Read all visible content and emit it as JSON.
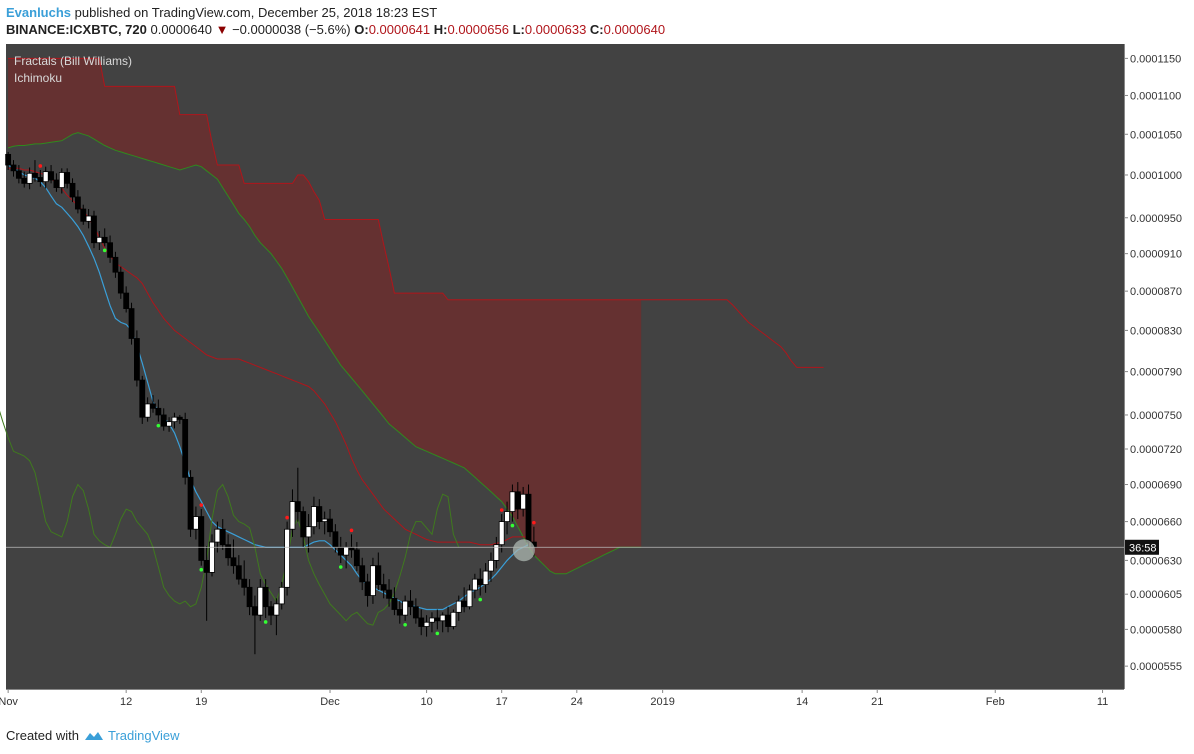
{
  "header": {
    "author": "Evanluchs",
    "published_text": " published on TradingView.com, December 25, 2018 18:23 EST",
    "symbol": "BINANCE:ICXBTC, 720",
    "last": "0.0000640",
    "change_arrow": "▼",
    "change": "−0.0000038 (−5.6%)",
    "o_label": "O:",
    "o_value": "0.0000641",
    "h_label": "H:",
    "h_value": "0.0000656",
    "l_label": "L:",
    "l_value": "0.0000633",
    "c_label": "C:",
    "c_value": "0.0000640"
  },
  "footer": {
    "created_with": "Created with",
    "brand": "TradingView"
  },
  "colors": {
    "pane": "#424242",
    "candle_up": "#ffffff",
    "candle_down": "#000000",
    "tenkan": "#3a9fd8",
    "kijun": "#b0151b",
    "span_a": "#2f8a1e",
    "span_b": "#b0151b",
    "cloud_bear": "#6b2e2e",
    "chikou": "#3f7a1e",
    "fractal_up": "#ff1a1a",
    "fractal_down": "#33ff33"
  },
  "chart_data": {
    "type": "candlestick",
    "legend": [
      "Fractals (Bill Williams)",
      "Ichimoku"
    ],
    "y_ticks": [
      0.000115,
      0.00011,
      0.000105,
      0.0001,
      9.5e-05,
      9.1e-05,
      8.7e-05,
      8.3e-05,
      7.9e-05,
      7.5e-05,
      7.2e-05,
      6.9e-05,
      6.6e-05,
      6.3e-05,
      6.05e-05,
      5.8e-05,
      5.55e-05
    ],
    "y_scale": "log",
    "y_range": [
      5.4e-05,
      0.000117
    ],
    "x_ticks": [
      {
        "label": "Nov",
        "t": 0
      },
      {
        "label": "12",
        "t": 11
      },
      {
        "label": "19",
        "t": 18
      },
      {
        "label": "Dec",
        "t": 30
      },
      {
        "label": "10",
        "t": 39
      },
      {
        "label": "17",
        "t": 46
      },
      {
        "label": "24",
        "t": 53
      },
      {
        "label": "2019",
        "t": 61
      },
      {
        "label": "14",
        "t": 74
      },
      {
        "label": "21",
        "t": 81
      },
      {
        "label": "Feb",
        "t": 92
      },
      {
        "label": "11",
        "t": 102
      }
    ],
    "x_range_days": [
      -0.2,
      104
    ],
    "interval_hours": 12,
    "current_price": 6.4e-05,
    "countdown": "36:58",
    "candles": [
      [
        0.0001025,
        0.0001028,
        0.0001006,
        0.0001012
      ],
      [
        0.0001012,
        0.0001018,
        9.98e-05,
        0.0001005
      ],
      [
        0.0001005,
        0.0001012,
        9.9e-05,
        9.96e-05
      ],
      [
        9.96e-05,
        0.0001004,
        9.85e-05,
        9.9e-05
      ],
      [
        9.9e-05,
        0.0001009,
        9.83e-05,
        0.0001002
      ],
      [
        0.0001002,
        0.0001018,
        9.92e-05,
        9.97e-05
      ],
      [
        9.97e-05,
        0.0001006,
        9.86e-05,
        9.92e-05
      ],
      [
        9.92e-05,
        0.000101,
        9.84e-05,
        0.0001004
      ],
      [
        0.0001004,
        0.0001012,
        9.9e-05,
        9.94e-05
      ],
      [
        9.94e-05,
        0.0001002,
        9.8e-05,
        9.85e-05
      ],
      [
        9.85e-05,
        0.0001008,
        9.78e-05,
        0.0001003
      ],
      [
        0.0001003,
        0.0001008,
        9.84e-05,
        9.9e-05
      ],
      [
        9.9e-05,
        9.96e-05,
        9.68e-05,
        9.74e-05
      ],
      [
        9.74e-05,
        9.82e-05,
        9.55e-05,
        9.6e-05
      ],
      [
        9.6e-05,
        9.65e-05,
        9.42e-05,
        9.46e-05
      ],
      [
        9.46e-05,
        9.6e-05,
        9.38e-05,
        9.52e-05
      ],
      [
        9.52e-05,
        9.58e-05,
        9.16e-05,
        9.22e-05
      ],
      [
        9.22e-05,
        9.35e-05,
        9.14e-05,
        9.28e-05
      ],
      [
        9.28e-05,
        9.38e-05,
        9.18e-05,
        9.22e-05
      ],
      [
        9.22e-05,
        9.3e-05,
        9e-05,
        9.06e-05
      ],
      [
        9.06e-05,
        9.12e-05,
        8.84e-05,
        8.9e-05
      ],
      [
        8.9e-05,
        8.96e-05,
        8.62e-05,
        8.68e-05
      ],
      [
        8.68e-05,
        8.75e-05,
        8.48e-05,
        8.52e-05
      ],
      [
        8.52e-05,
        8.58e-05,
        8.16e-05,
        8.22e-05
      ],
      [
        8.22e-05,
        8.3e-05,
        7.76e-05,
        7.82e-05
      ],
      [
        7.82e-05,
        7.86e-05,
        7.42e-05,
        7.48e-05
      ],
      [
        7.48e-05,
        7.66e-05,
        7.44e-05,
        7.6e-05
      ],
      [
        7.6e-05,
        7.68e-05,
        7.52e-05,
        7.56e-05
      ],
      [
        7.56e-05,
        7.64e-05,
        7.44e-05,
        7.5e-05
      ],
      [
        7.5e-05,
        7.56e-05,
        7.36e-05,
        7.4e-05
      ],
      [
        7.4e-05,
        7.48e-05,
        7.35e-05,
        7.44e-05
      ],
      [
        7.44e-05,
        7.52e-05,
        7.38e-05,
        7.48e-05
      ],
      [
        7.48e-05,
        7.5e-05,
        7.42e-05,
        7.46e-05
      ],
      [
        7.46e-05,
        7.52e-05,
        6.9e-05,
        6.96e-05
      ],
      [
        6.96e-05,
        7.02e-05,
        6.48e-05,
        6.54e-05
      ],
      [
        6.54e-05,
        6.72e-05,
        6.46e-05,
        6.64e-05
      ],
      [
        6.64e-05,
        6.7e-05,
        6.26e-05,
        6.3e-05
      ],
      [
        6.3e-05,
        6.41e-05,
        5.86e-05,
        6.21e-05
      ],
      [
        6.21e-05,
        6.5e-05,
        6.18e-05,
        6.44e-05
      ],
      [
        6.44e-05,
        6.6e-05,
        6.36e-05,
        6.54e-05
      ],
      [
        6.54e-05,
        6.62e-05,
        6.38e-05,
        6.42e-05
      ],
      [
        6.42e-05,
        6.5e-05,
        6.26e-05,
        6.32e-05
      ],
      [
        6.32e-05,
        6.46e-05,
        6.2e-05,
        6.26e-05
      ],
      [
        6.26e-05,
        6.34e-05,
        6.12e-05,
        6.16e-05
      ],
      [
        6.16e-05,
        6.3e-05,
        6.04e-05,
        6.1e-05
      ],
      [
        6.1e-05,
        6.16e-05,
        5.9e-05,
        5.96e-05
      ],
      [
        5.96e-05,
        6.04e-05,
        5.63e-05,
        5.9e-05
      ],
      [
        5.9e-05,
        6.16e-05,
        5.86e-05,
        6.1e-05
      ],
      [
        6.1e-05,
        6.16e-05,
        5.88e-05,
        5.96e-05
      ],
      [
        5.96e-05,
        6e-05,
        5.83e-05,
        5.9e-05
      ],
      [
        5.9e-05,
        6.02e-05,
        5.76e-05,
        5.98e-05
      ],
      [
        5.98e-05,
        6.14e-05,
        5.94e-05,
        6.1e-05
      ],
      [
        6.1e-05,
        6.6e-05,
        6.04e-05,
        6.54e-05
      ],
      [
        6.54e-05,
        6.86e-05,
        6.48e-05,
        6.76e-05
      ],
      [
        6.76e-05,
        7.04e-05,
        6.6e-05,
        6.68e-05
      ],
      [
        6.68e-05,
        6.72e-05,
        6.4e-05,
        6.48e-05
      ],
      [
        6.48e-05,
        6.66e-05,
        6.36e-05,
        6.56e-05
      ],
      [
        6.56e-05,
        6.8e-05,
        6.5e-05,
        6.72e-05
      ],
      [
        6.72e-05,
        6.78e-05,
        6.54e-05,
        6.6e-05
      ],
      [
        6.6e-05,
        6.68e-05,
        6.5e-05,
        6.62e-05
      ],
      [
        6.62e-05,
        6.7e-05,
        6.48e-05,
        6.52e-05
      ],
      [
        6.52e-05,
        6.58e-05,
        6.36e-05,
        6.4e-05
      ],
      [
        6.4e-05,
        6.48e-05,
        6.28e-05,
        6.34e-05
      ],
      [
        6.34e-05,
        6.44e-05,
        6.24e-05,
        6.4e-05
      ],
      [
        6.4e-05,
        6.5e-05,
        6.32e-05,
        6.38e-05
      ],
      [
        6.38e-05,
        6.44e-05,
        6.22e-05,
        6.26e-05
      ],
      [
        6.26e-05,
        6.32e-05,
        6.08e-05,
        6.14e-05
      ],
      [
        6.14e-05,
        6.2e-05,
        5.96e-05,
        6.04e-05
      ],
      [
        6.04e-05,
        6.32e-05,
        5.98e-05,
        6.26e-05
      ],
      [
        6.26e-05,
        6.36e-05,
        6.08e-05,
        6.12e-05
      ],
      [
        6.12e-05,
        6.2e-05,
        6.02e-05,
        6.08e-05
      ],
      [
        6.08e-05,
        6.16e-05,
        5.96e-05,
        6.02e-05
      ],
      [
        6.02e-05,
        6.1e-05,
        5.9e-05,
        5.94e-05
      ],
      [
        5.94e-05,
        6e-05,
        5.84e-05,
        5.9e-05
      ],
      [
        5.9e-05,
        6.04e-05,
        5.86e-05,
        6e-05
      ],
      [
        6e-05,
        6.08e-05,
        5.9e-05,
        5.96e-05
      ],
      [
        5.96e-05,
        6.02e-05,
        5.84e-05,
        5.88e-05
      ],
      [
        5.88e-05,
        5.94e-05,
        5.76e-05,
        5.82e-05
      ],
      [
        5.82e-05,
        5.9e-05,
        5.75e-05,
        5.85e-05
      ],
      [
        5.85e-05,
        5.92e-05,
        5.78e-05,
        5.88e-05
      ],
      [
        5.88e-05,
        5.94e-05,
        5.8e-05,
        5.86e-05
      ],
      [
        5.86e-05,
        5.92e-05,
        5.78e-05,
        5.9e-05
      ],
      [
        5.9e-05,
        5.96e-05,
        5.78e-05,
        5.82e-05
      ],
      [
        5.82e-05,
        5.94e-05,
        5.8e-05,
        5.92e-05
      ],
      [
        5.92e-05,
        6.04e-05,
        5.86e-05,
        6e-05
      ],
      [
        6e-05,
        6.1e-05,
        5.92e-05,
        5.96e-05
      ],
      [
        5.96e-05,
        6.12e-05,
        5.94e-05,
        6.08e-05
      ],
      [
        6.08e-05,
        6.2e-05,
        6.02e-05,
        6.16e-05
      ],
      [
        6.16e-05,
        6.24e-05,
        6.04e-05,
        6.12e-05
      ],
      [
        6.12e-05,
        6.28e-05,
        6.06e-05,
        6.22e-05
      ],
      [
        6.22e-05,
        6.36e-05,
        6.14e-05,
        6.3e-05
      ],
      [
        6.3e-05,
        6.48e-05,
        6.24e-05,
        6.42e-05
      ],
      [
        6.42e-05,
        6.66e-05,
        6.36e-05,
        6.6e-05
      ],
      [
        6.6e-05,
        6.76e-05,
        6.5e-05,
        6.68e-05
      ],
      [
        6.68e-05,
        6.9e-05,
        6.6e-05,
        6.84e-05
      ],
      [
        6.84e-05,
        6.92e-05,
        6.62e-05,
        6.7e-05
      ],
      [
        6.7e-05,
        6.88e-05,
        6.64e-05,
        6.82e-05
      ],
      [
        6.82e-05,
        6.9e-05,
        6.4e-05,
        6.44e-05
      ],
      [
        6.44e-05,
        6.56e-05,
        6.33e-05,
        6.4e-05
      ]
    ],
    "tenkan": [
      0.0001012,
      0.0001008,
      0.0001004,
      0.0001,
      9.98e-05,
      9.96e-05,
      9.92e-05,
      9.85e-05,
      9.75e-05,
      9.66e-05,
      9.62e-05,
      9.55e-05,
      9.48e-05,
      9.4e-05,
      9.3e-05,
      9.18e-05,
      9.05e-05,
      8.9e-05,
      8.72e-05,
      8.55e-05,
      8.42e-05,
      8.38e-05,
      8.36e-05,
      8.3e-05,
      8.15e-05,
      7.98e-05,
      7.8e-05,
      7.62e-05,
      7.52e-05,
      7.48e-05,
      7.42e-05,
      7.34e-05,
      7.22e-05,
      7.08e-05,
      6.94e-05,
      6.84e-05,
      6.76e-05,
      6.68e-05,
      6.6e-05,
      6.56e-05,
      6.54e-05,
      6.52e-05,
      6.5e-05,
      6.48e-05,
      6.46e-05,
      6.44e-05,
      6.42e-05,
      6.41e-05,
      6.4e-05,
      6.4e-05,
      6.4e-05,
      6.4e-05,
      6.4e-05,
      6.4e-05,
      6.4e-05,
      6.4e-05,
      6.42e-05,
      6.44e-05,
      6.45e-05,
      6.45e-05,
      6.42e-05,
      6.38e-05,
      6.34e-05,
      6.3e-05,
      6.26e-05,
      6.2e-05,
      6.15e-05,
      6.12e-05,
      6.1e-05,
      6.08e-05,
      6.06e-05,
      6.04e-05,
      6.02e-05,
      6e-05,
      5.98e-05,
      5.97e-05,
      5.96e-05,
      5.95e-05,
      5.94e-05,
      5.94e-05,
      5.94e-05,
      5.94e-05,
      5.96e-05,
      5.98e-05,
      6e-05,
      6.03e-05,
      6.06e-05,
      6.08e-05,
      6.1e-05,
      6.13e-05,
      6.16e-05,
      6.2e-05,
      6.25e-05,
      6.3e-05,
      6.34e-05,
      6.38e-05,
      6.4e-05,
      6.42e-05
    ],
    "kijun": [
      0.0001008,
      0.0001008,
      0.0001008,
      0.0001006,
      0.0001006,
      0.0001004,
      0.0001002,
      0.0001,
      9.96e-05,
      9.9e-05,
      9.84e-05,
      9.76e-05,
      9.7e-05,
      9.64e-05,
      9.58e-05,
      9.5e-05,
      9.4e-05,
      9.28e-05,
      9.16e-05,
      9.08e-05,
      9e-05,
      8.96e-05,
      8.92e-05,
      8.88e-05,
      8.84e-05,
      8.78e-05,
      8.68e-05,
      8.58e-05,
      8.5e-05,
      8.42e-05,
      8.36e-05,
      8.3e-05,
      8.26e-05,
      8.22e-05,
      8.18e-05,
      8.14e-05,
      8.1e-05,
      8.06e-05,
      8.04e-05,
      8.02e-05,
      8.02e-05,
      8.02e-05,
      8.02e-05,
      8.02e-05,
      8e-05,
      7.98e-05,
      7.96e-05,
      7.94e-05,
      7.92e-05,
      7.9e-05,
      7.88e-05,
      7.86e-05,
      7.84e-05,
      7.82e-05,
      7.8e-05,
      7.78e-05,
      7.76e-05,
      7.72e-05,
      7.66e-05,
      7.6e-05,
      7.52e-05,
      7.44e-05,
      7.34e-05,
      7.24e-05,
      7.12e-05,
      7.02e-05,
      6.94e-05,
      6.88e-05,
      6.82e-05,
      6.76e-05,
      6.7e-05,
      6.66e-05,
      6.62e-05,
      6.58e-05,
      6.54e-05,
      6.52e-05,
      6.5e-05,
      6.48e-05,
      6.46e-05,
      6.45e-05,
      6.44e-05,
      6.44e-05,
      6.44e-05,
      6.44e-05,
      6.44e-05,
      6.44e-05,
      6.44e-05,
      6.43e-05,
      6.42e-05,
      6.42e-05,
      6.42e-05,
      6.43e-05,
      6.44e-05,
      6.46e-05,
      6.48e-05,
      6.48e-05,
      6.48e-05,
      6.48e-05
    ],
    "span_a_start": 0,
    "span_a": [
      0.0001033,
      0.0001035,
      0.0001036,
      0.0001036,
      0.0001037,
      0.0001038,
      0.0001038,
      0.0001039,
      0.000104,
      0.0001041,
      0.0001042,
      0.0001046,
      0.000105,
      0.0001052,
      0.000105,
      0.0001048,
      0.0001044,
      0.000104,
      0.0001036,
      0.0001033,
      0.000103,
      0.0001028,
      0.0001026,
      0.0001024,
      0.0001022,
      0.000102,
      0.0001018,
      0.0001016,
      0.0001014,
      0.0001012,
      0.000101,
      0.0001008,
      0.0001006,
      0.0001008,
      0.000101,
      0.0001012,
      0.000101,
      0.0001005,
      0.0001,
      9.95e-05,
      9.85e-05,
      9.75e-05,
      9.65e-05,
      9.55e-05,
      9.48e-05,
      9.4e-05,
      9.3e-05,
      9.22e-05,
      9.16e-05,
      9.1e-05,
      9.02e-05,
      8.94e-05,
      8.84e-05,
      8.74e-05,
      8.64e-05,
      8.54e-05,
      8.44e-05,
      8.36e-05,
      8.28e-05,
      8.2e-05,
      8.12e-05,
      8.04e-05,
      7.96e-05,
      7.9e-05,
      7.84e-05,
      7.78e-05,
      7.72e-05,
      7.66e-05,
      7.6e-05,
      7.54e-05,
      7.48e-05,
      7.42e-05,
      7.38e-05,
      7.34e-05,
      7.3e-05,
      7.26e-05,
      7.22e-05,
      7.2e-05,
      7.18e-05,
      7.16e-05,
      7.14e-05,
      7.12e-05,
      7.1e-05,
      7.08e-05,
      7.06e-05,
      7.04e-05,
      7e-05,
      6.96e-05,
      6.92e-05,
      6.88e-05,
      6.84e-05,
      6.8e-05,
      6.76e-05,
      6.7e-05,
      6.64e-05,
      6.56e-05,
      6.48e-05,
      6.4e-05,
      6.34e-05,
      6.3e-05,
      6.26e-05,
      6.22e-05,
      6.2e-05,
      6.2e-05,
      6.2e-05,
      6.22e-05,
      6.24e-05,
      6.26e-05,
      6.28e-05,
      6.3e-05,
      6.32e-05,
      6.34e-05,
      6.36e-05,
      6.38e-05,
      6.4e-05,
      6.4e-05,
      6.4e-05,
      6.4e-05,
      6.4e-05
    ],
    "span_b_start": 0,
    "span_b": [
      0.000115,
      0.000115,
      0.000115,
      0.000115,
      0.000115,
      0.000115,
      0.000115,
      0.000115,
      0.000115,
      0.000115,
      0.000115,
      0.000115,
      0.000115,
      0.000115,
      0.000115,
      0.000115,
      0.000115,
      0.000115,
      0.0001112,
      0.0001112,
      0.0001112,
      0.0001112,
      0.0001112,
      0.0001112,
      0.0001112,
      0.0001112,
      0.0001112,
      0.0001112,
      0.0001112,
      0.0001112,
      0.0001112,
      0.0001112,
      0.0001075,
      0.0001075,
      0.0001075,
      0.0001075,
      0.0001075,
      0.0001075,
      0.000104,
      0.0001012,
      0.0001012,
      0.0001012,
      0.0001012,
      0.0001012,
      9.9e-05,
      9.9e-05,
      9.9e-05,
      9.9e-05,
      9.9e-05,
      9.9e-05,
      9.9e-05,
      9.9e-05,
      9.9e-05,
      9.9e-05,
      0.0001,
      0.0001,
      9.92e-05,
      9.8e-05,
      9.7e-05,
      9.48e-05,
      9.48e-05,
      9.48e-05,
      9.48e-05,
      9.48e-05,
      9.48e-05,
      9.48e-05,
      9.48e-05,
      9.48e-05,
      9.48e-05,
      9.48e-05,
      9.2e-05,
      8.95e-05,
      8.68e-05,
      8.68e-05,
      8.68e-05,
      8.68e-05,
      8.68e-05,
      8.68e-05,
      8.68e-05,
      8.68e-05,
      8.68e-05,
      8.68e-05,
      8.61e-05,
      8.61e-05,
      8.61e-05,
      8.61e-05,
      8.61e-05,
      8.61e-05,
      8.61e-05,
      8.61e-05,
      8.61e-05,
      8.61e-05,
      8.61e-05,
      8.61e-05,
      8.61e-05,
      8.61e-05,
      8.61e-05,
      8.61e-05,
      8.61e-05,
      8.61e-05,
      8.61e-05,
      8.61e-05,
      8.61e-05,
      8.61e-05,
      8.61e-05,
      8.61e-05,
      8.61e-05,
      8.61e-05,
      8.61e-05,
      8.61e-05,
      8.61e-05,
      8.61e-05,
      8.61e-05,
      8.61e-05,
      8.61e-05,
      8.61e-05,
      8.61e-05,
      8.61e-05,
      8.61e-05,
      8.61e-05,
      8.61e-05,
      8.61e-05,
      8.61e-05,
      8.61e-05,
      8.61e-05,
      8.61e-05,
      8.61e-05,
      8.61e-05,
      8.61e-05,
      8.61e-05,
      8.61e-05,
      8.61e-05,
      8.61e-05,
      8.61e-05,
      8.61e-05,
      8.56e-05,
      8.5e-05,
      8.44e-05,
      8.38e-05,
      8.34e-05,
      8.3e-05,
      8.26e-05,
      8.22e-05,
      8.18e-05,
      8.14e-05,
      8.08e-05,
      8e-05,
      7.94e-05,
      7.94e-05,
      7.94e-05,
      7.94e-05,
      7.94e-05,
      7.94e-05
    ],
    "chikou_start": -2,
    "chikou": [
      7.6e-05,
      7.44e-05,
      7.3e-05,
      7.18e-05,
      7.16e-05,
      7.14e-05,
      7.1e-05,
      7e-05,
      6.8e-05,
      6.6e-05,
      6.52e-05,
      6.5e-05,
      6.48e-05,
      6.6e-05,
      6.8e-05,
      6.9e-05,
      6.85e-05,
      6.7e-05,
      6.5e-05,
      6.45e-05,
      6.42e-05,
      6.4e-05,
      6.5e-05,
      6.62e-05,
      6.7e-05,
      6.68e-05,
      6.6e-05,
      6.55e-05,
      6.5e-05,
      6.4e-05,
      6.25e-05,
      6.1e-05,
      6.04e-05,
      6e-05,
      5.98e-05,
      6e-05,
      5.96e-05,
      5.98e-05,
      6.1e-05,
      6.3e-05,
      6.62e-05,
      6.85e-05,
      6.9e-05,
      6.8e-05,
      6.65e-05,
      6.6e-05,
      6.58e-05,
      6.55e-05,
      6.4e-05,
      6.2e-05,
      6.12e-05,
      6.06e-05,
      6e-05,
      6.12e-05,
      6.3e-05,
      6.54e-05,
      6.62e-05,
      6.48e-05,
      6.3e-05,
      6.2e-05,
      6.12e-05,
      6.05e-05,
      5.98e-05,
      5.94e-05,
      5.9e-05,
      5.86e-05,
      5.9e-05,
      5.92e-05,
      5.88e-05,
      5.84e-05,
      5.83e-05,
      5.92e-05,
      5.94e-05,
      5.98e-05,
      6.06e-05,
      6.18e-05,
      6.32e-05,
      6.5e-05,
      6.6e-05,
      6.6e-05,
      6.55e-05,
      6.5e-05,
      6.7e-05,
      6.82e-05,
      6.8e-05,
      6.5e-05,
      6.4e-05
    ],
    "fractals_up": [
      6,
      36,
      52,
      64,
      92,
      98
    ],
    "fractals_down": [
      18,
      28,
      36,
      48,
      62,
      74,
      80,
      88,
      94
    ]
  }
}
